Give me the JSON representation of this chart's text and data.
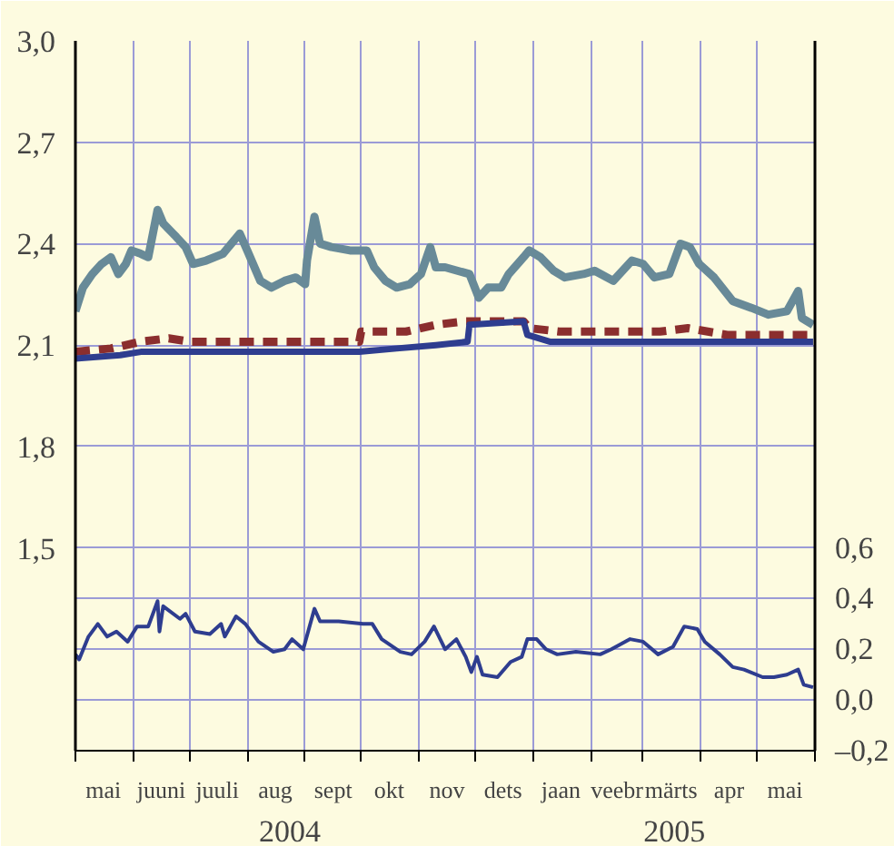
{
  "chart_data": {
    "type": "line",
    "xlim": [
      "2004-05-01",
      "2005-06-01"
    ],
    "xticks": [
      {
        "value": "2004-05-01",
        "label": null
      },
      {
        "value": "2004-05-16",
        "label": "mai"
      },
      {
        "value": "2004-06-01",
        "label": null
      },
      {
        "value": "2004-06-16",
        "label": "juuni"
      },
      {
        "value": "2004-07-01",
        "label": null
      },
      {
        "value": "2004-07-16",
        "label": "juuli"
      },
      {
        "value": "2004-08-01",
        "label": null
      },
      {
        "value": "2004-08-16",
        "label": "aug"
      },
      {
        "value": "2004-09-01",
        "label": null
      },
      {
        "value": "2004-09-16",
        "label": "sept"
      },
      {
        "value": "2004-10-01",
        "label": null
      },
      {
        "value": "2004-10-16",
        "label": "okt"
      },
      {
        "value": "2004-11-01",
        "label": null
      },
      {
        "value": "2004-11-16",
        "label": "nov"
      },
      {
        "value": "2004-12-01",
        "label": null
      },
      {
        "value": "2004-12-16",
        "label": "dets"
      },
      {
        "value": "2005-01-01",
        "label": null
      },
      {
        "value": "2005-01-16",
        "label": "jaan"
      },
      {
        "value": "2005-02-01",
        "label": null
      },
      {
        "value": "2005-02-15",
        "label": "veebr"
      },
      {
        "value": "2005-03-01",
        "label": null
      },
      {
        "value": "2005-03-16",
        "label": "märts"
      },
      {
        "value": "2005-04-01",
        "label": null
      },
      {
        "value": "2005-04-16",
        "label": "apr"
      },
      {
        "value": "2005-05-01",
        "label": null
      },
      {
        "value": "2005-05-16",
        "label": "mai"
      },
      {
        "value": "2005-06-01",
        "label": null
      }
    ],
    "ylim": [
      0.9,
      3.0
    ],
    "yticks": [
      {
        "value": 1.5,
        "label": "1,5"
      },
      {
        "value": 1.8,
        "label": "1,8"
      },
      {
        "value": 2.1,
        "label": "2,1"
      },
      {
        "value": 2.4,
        "label": "2,4"
      },
      {
        "value": 2.7,
        "label": "2,7"
      },
      {
        "value": 3.0,
        "label": "3,0"
      }
    ],
    "y2lim": [
      -0.2,
      2.6
    ],
    "y2ticks": [
      {
        "value": -0.2,
        "label": "–0,2"
      },
      {
        "value": 0.0,
        "label": "0,0"
      },
      {
        "value": 0.2,
        "label": "0,2"
      },
      {
        "value": 0.4,
        "label": "0,4"
      },
      {
        "value": 0.6,
        "label": "0,6"
      }
    ],
    "grid": true,
    "line_style": "solid",
    "annotations": [
      "2004",
      "2005"
    ],
    "series": [
      {
        "color": "#688a98",
        "x": [
          "2004-05-01",
          "2004-05-05",
          "2004-05-10",
          "2004-05-15",
          "2004-05-20",
          "2004-05-24",
          "2004-05-28",
          "2004-05-31",
          "2004-06-05",
          "2004-06-09",
          "2004-06-14",
          "2004-06-17",
          "2004-06-24",
          "2004-06-29",
          "2004-07-03",
          "2004-07-10",
          "2004-07-19",
          "2004-07-28",
          "2004-08-01",
          "2004-08-08",
          "2004-08-14",
          "2004-08-21",
          "2004-08-27",
          "2004-09-01",
          "2004-09-02",
          "2004-09-06",
          "2004-09-09",
          "2004-09-15",
          "2004-09-25",
          "2004-10-04",
          "2004-10-08",
          "2004-10-14",
          "2004-10-20",
          "2004-10-27",
          "2004-11-02",
          "2004-11-07",
          "2004-11-10",
          "2004-11-15",
          "2004-11-28",
          "2004-12-03",
          "2004-12-08",
          "2004-12-15",
          "2004-12-19",
          "2004-12-27",
          "2004-12-30",
          "2005-01-05",
          "2005-01-12",
          "2005-01-18",
          "2005-01-28",
          "2005-02-03",
          "2005-02-13",
          "2005-02-23",
          "2005-03-01",
          "2005-03-07",
          "2005-03-15",
          "2005-03-21",
          "2005-03-26",
          "2005-03-31",
          "2005-04-08",
          "2005-04-18",
          "2005-04-28",
          "2005-05-07",
          "2005-05-17",
          "2005-05-23",
          "2005-05-25",
          "2005-05-31"
        ],
        "values": [
          2.2,
          2.27,
          2.31,
          2.34,
          2.36,
          2.31,
          2.34,
          2.38,
          2.37,
          2.36,
          2.5,
          2.46,
          2.42,
          2.39,
          2.34,
          2.35,
          2.37,
          2.43,
          2.38,
          2.29,
          2.27,
          2.29,
          2.3,
          2.28,
          2.35,
          2.48,
          2.4,
          2.39,
          2.38,
          2.38,
          2.33,
          2.29,
          2.27,
          2.28,
          2.31,
          2.39,
          2.33,
          2.33,
          2.31,
          2.24,
          2.27,
          2.27,
          2.31,
          2.36,
          2.38,
          2.36,
          2.32,
          2.3,
          2.31,
          2.32,
          2.29,
          2.35,
          2.34,
          2.3,
          2.31,
          2.4,
          2.39,
          2.34,
          2.3,
          2.23,
          2.21,
          2.19,
          2.2,
          2.26,
          2.18,
          2.16
        ]
      },
      {
        "color": "#8b2e2e",
        "line_style": "dashed",
        "x": [
          "2004-05-01",
          "2004-05-20",
          "2004-06-05",
          "2004-06-20",
          "2004-07-01",
          "2004-08-15",
          "2004-09-30",
          "2004-10-01",
          "2004-10-25",
          "2004-11-10",
          "2004-11-25",
          "2004-12-10",
          "2004-12-27",
          "2004-12-30",
          "2005-01-15",
          "2005-02-15",
          "2005-03-10",
          "2005-03-25",
          "2005-04-15",
          "2005-05-31"
        ],
        "values": [
          2.08,
          2.09,
          2.11,
          2.12,
          2.11,
          2.11,
          2.11,
          2.14,
          2.14,
          2.16,
          2.17,
          2.17,
          2.17,
          2.15,
          2.14,
          2.14,
          2.14,
          2.15,
          2.13,
          2.13
        ]
      },
      {
        "color": "#2e3d8f",
        "x": [
          "2004-05-01",
          "2004-05-25",
          "2004-06-05",
          "2004-07-01",
          "2004-09-30",
          "2004-10-20",
          "2004-11-10",
          "2004-11-27",
          "2004-11-28",
          "2004-12-27",
          "2004-12-29",
          "2005-01-10",
          "2005-05-31"
        ],
        "values": [
          2.06,
          2.07,
          2.08,
          2.08,
          2.08,
          2.09,
          2.1,
          2.11,
          2.16,
          2.17,
          2.13,
          2.11,
          2.11
        ]
      },
      {
        "color": "#2e3d8f",
        "axis": "y2",
        "x": [
          "2004-05-01",
          "2004-05-03",
          "2004-05-08",
          "2004-05-13",
          "2004-05-18",
          "2004-05-23",
          "2004-05-29",
          "2004-06-03",
          "2004-06-09",
          "2004-06-14",
          "2004-06-15",
          "2004-06-17",
          "2004-06-26",
          "2004-06-29",
          "2004-07-04",
          "2004-07-12",
          "2004-07-18",
          "2004-07-20",
          "2004-07-26",
          "2004-07-31",
          "2004-08-07",
          "2004-08-15",
          "2004-08-21",
          "2004-08-25",
          "2004-08-31",
          "2004-09-06",
          "2004-09-09",
          "2004-09-19",
          "2004-10-02",
          "2004-10-07",
          "2004-10-12",
          "2004-10-22",
          "2004-10-28",
          "2004-11-04",
          "2004-11-09",
          "2004-11-15",
          "2004-11-21",
          "2004-11-26",
          "2004-11-29",
          "2004-12-02",
          "2004-12-05",
          "2004-12-13",
          "2004-12-20",
          "2004-12-26",
          "2004-12-29",
          "2005-01-03",
          "2005-01-08",
          "2005-01-14",
          "2005-01-24",
          "2005-02-06",
          "2005-02-12",
          "2005-02-22",
          "2005-03-01",
          "2005-03-09",
          "2005-03-17",
          "2005-03-23",
          "2005-03-30",
          "2005-04-03",
          "2005-04-11",
          "2005-04-18",
          "2005-04-24",
          "2005-05-04",
          "2005-05-10",
          "2005-05-17",
          "2005-05-23",
          "2005-05-26",
          "2005-05-31"
        ],
        "values": [
          0.18,
          0.16,
          0.25,
          0.3,
          0.25,
          0.27,
          0.23,
          0.29,
          0.29,
          0.39,
          0.27,
          0.37,
          0.32,
          0.34,
          0.27,
          0.26,
          0.3,
          0.25,
          0.33,
          0.3,
          0.23,
          0.19,
          0.2,
          0.24,
          0.2,
          0.36,
          0.31,
          0.31,
          0.3,
          0.3,
          0.24,
          0.19,
          0.18,
          0.23,
          0.29,
          0.2,
          0.24,
          0.17,
          0.11,
          0.17,
          0.1,
          0.09,
          0.15,
          0.17,
          0.24,
          0.24,
          0.2,
          0.18,
          0.19,
          0.18,
          0.2,
          0.24,
          0.23,
          0.18,
          0.21,
          0.29,
          0.28,
          0.23,
          0.18,
          0.13,
          0.12,
          0.09,
          0.09,
          0.1,
          0.12,
          0.06,
          0.05
        ]
      }
    ]
  }
}
